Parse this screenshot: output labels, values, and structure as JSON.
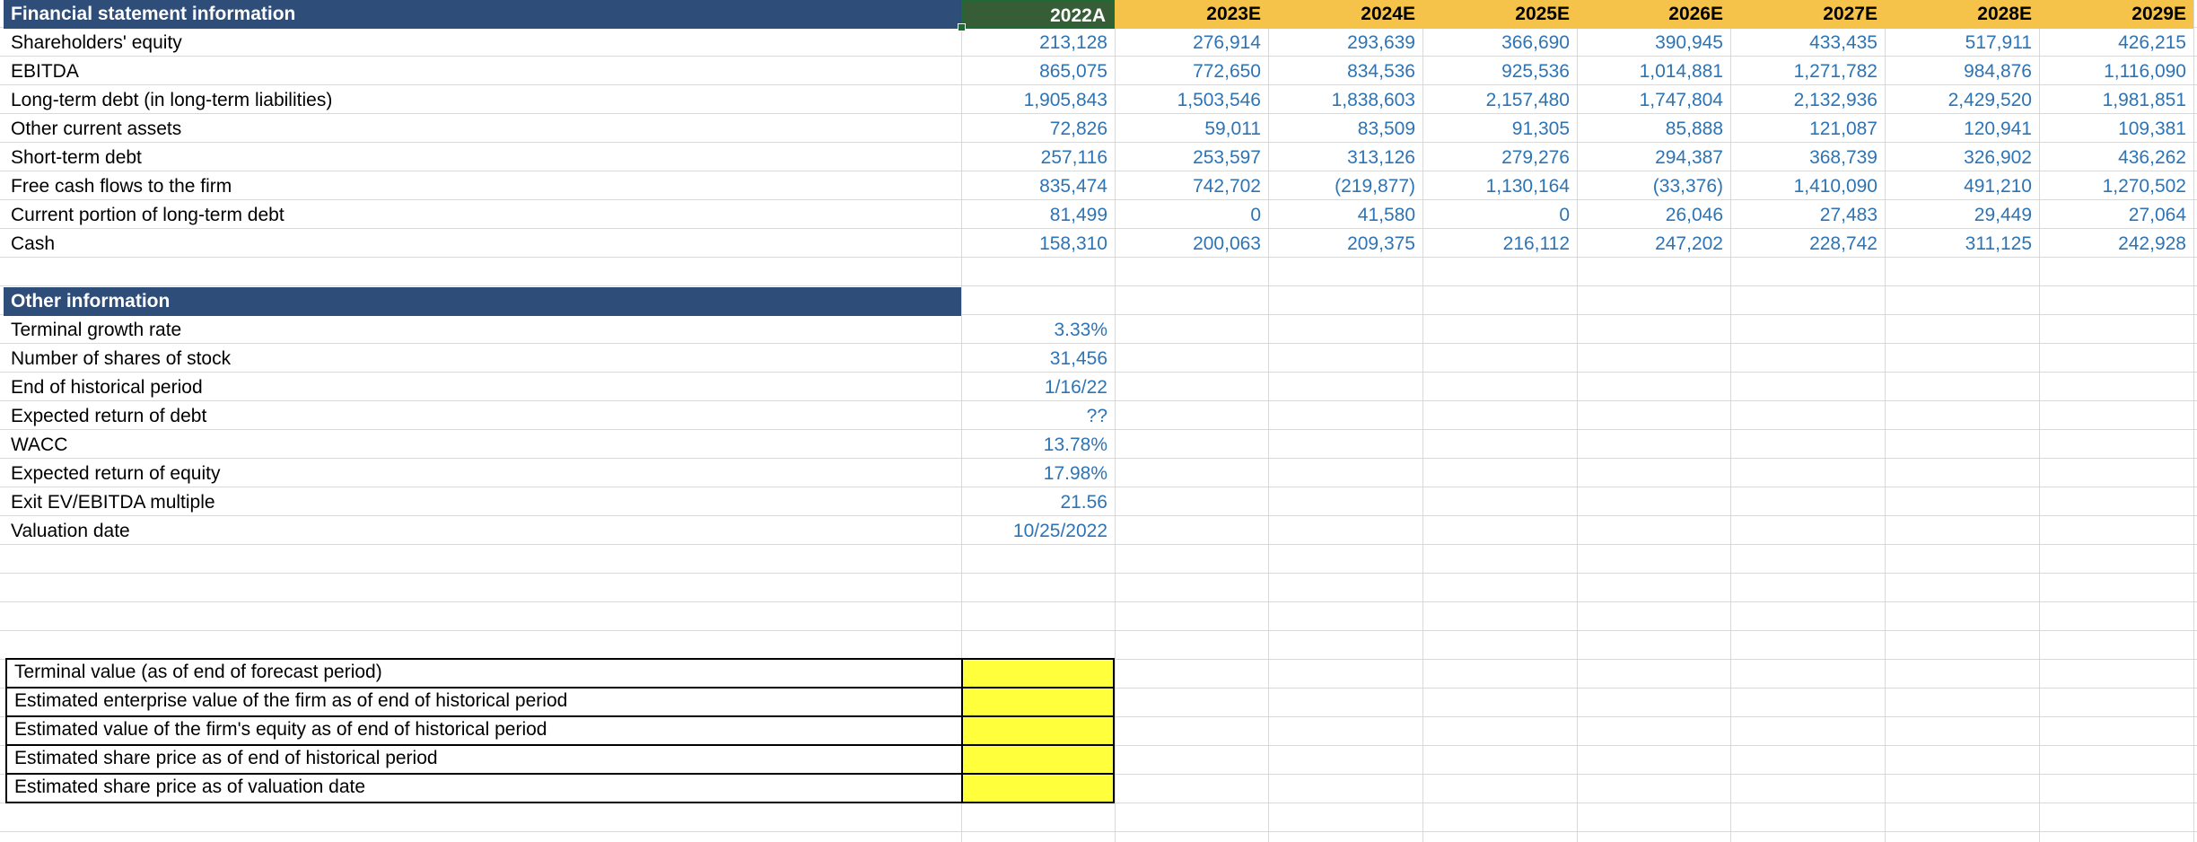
{
  "colors": {
    "section_header": "#2e4d78",
    "actual_header": "#375d36",
    "estimate_header": "#f6c34a",
    "value_text": "#2e74b5",
    "output_fill": "#ffff3c"
  },
  "financials": {
    "title": "Financial statement information",
    "years": [
      "2022A",
      "2023E",
      "2024E",
      "2025E",
      "2026E",
      "2027E",
      "2028E",
      "2029E"
    ],
    "rows": [
      {
        "label": "Shareholders' equity",
        "values": [
          "213,128",
          "276,914",
          "293,639",
          "366,690",
          "390,945",
          "433,435",
          "517,911",
          "426,215"
        ]
      },
      {
        "label": "EBITDA",
        "values": [
          "865,075",
          "772,650",
          "834,536",
          "925,536",
          "1,014,881",
          "1,271,782",
          "984,876",
          "1,116,090"
        ]
      },
      {
        "label": "Long-term debt (in long-term liabilities)",
        "values": [
          "1,905,843",
          "1,503,546",
          "1,838,603",
          "2,157,480",
          "1,747,804",
          "2,132,936",
          "2,429,520",
          "1,981,851"
        ]
      },
      {
        "label": "Other current assets",
        "values": [
          "72,826",
          "59,011",
          "83,509",
          "91,305",
          "85,888",
          "121,087",
          "120,941",
          "109,381"
        ]
      },
      {
        "label": "Short-term debt",
        "values": [
          "257,116",
          "253,597",
          "313,126",
          "279,276",
          "294,387",
          "368,739",
          "326,902",
          "436,262"
        ]
      },
      {
        "label": "Free cash flows to the firm",
        "values": [
          "835,474",
          "742,702",
          "(219,877)",
          "1,130,164",
          "(33,376)",
          "1,410,090",
          "491,210",
          "1,270,502"
        ]
      },
      {
        "label": "Current portion of long-term debt",
        "values": [
          "81,499",
          "0",
          "41,580",
          "0",
          "26,046",
          "27,483",
          "29,449",
          "27,064"
        ]
      },
      {
        "label": "Cash",
        "values": [
          "158,310",
          "200,063",
          "209,375",
          "216,112",
          "247,202",
          "228,742",
          "311,125",
          "242,928"
        ]
      }
    ]
  },
  "other": {
    "title": "Other information",
    "rows": [
      {
        "label": "Terminal growth rate",
        "value": "3.33%"
      },
      {
        "label": "Number of shares of stock",
        "value": "31,456"
      },
      {
        "label": "End of historical period",
        "value": "1/16/22"
      },
      {
        "label": "Expected return of debt",
        "value": "??"
      },
      {
        "label": "WACC",
        "value": "13.78%"
      },
      {
        "label": "Expected return of equity",
        "value": "17.98%"
      },
      {
        "label": "Exit EV/EBITDA multiple",
        "value": "21.56"
      },
      {
        "label": "Valuation date",
        "value": "10/25/2022"
      }
    ]
  },
  "outputs": {
    "rows": [
      {
        "label": "Terminal value (as of end of forecast period)",
        "value": ""
      },
      {
        "label": "Estimated enterprise value of the firm as of end of historical period",
        "value": ""
      },
      {
        "label": "Estimated value of the firm's equity as of end of historical period",
        "value": ""
      },
      {
        "label": "Estimated share price as of end of historical period",
        "value": ""
      },
      {
        "label": "Estimated share price as of valuation date",
        "value": ""
      }
    ]
  }
}
